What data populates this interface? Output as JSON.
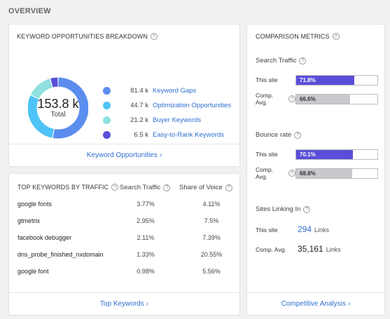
{
  "overview_title": "OVERVIEW",
  "keyword_opportunities": {
    "title": "KEYWORD OPPORTUNITIES BREAKDOWN",
    "total_value": "153.8 k",
    "total_label": "Total",
    "segments": [
      {
        "value": "81.4 k",
        "amount": 81.4,
        "label": "Keyword Gaps",
        "color": "#5b8def"
      },
      {
        "value": "44.7 k",
        "amount": 44.7,
        "label": "Optimization Opportunities",
        "color": "#4fc3f7"
      },
      {
        "value": "21.2 k",
        "amount": 21.2,
        "label": "Buyer Keywords",
        "color": "#8fe0e0"
      },
      {
        "value": "6.5 k",
        "amount": 6.5,
        "label": "Easy-to-Rank Keywords",
        "color": "#5a4fd8"
      }
    ],
    "footer_link": "Keyword Opportunities"
  },
  "top_keywords": {
    "title": "TOP KEYWORDS BY TRAFFIC",
    "col_search_traffic": "Search Traffic",
    "col_share_of_voice": "Share of Voice",
    "rows": [
      {
        "keyword": "google fonts",
        "search_traffic": "3.77%",
        "share_of_voice": "4.11%"
      },
      {
        "keyword": "gtmetrix",
        "search_traffic": "2.95%",
        "share_of_voice": "7.5%"
      },
      {
        "keyword": "facebook debugger",
        "search_traffic": "2.11%",
        "share_of_voice": "7.39%"
      },
      {
        "keyword": "dns_probe_finished_nxdomain",
        "search_traffic": "1.33%",
        "share_of_voice": "20.55%"
      },
      {
        "keyword": "google font",
        "search_traffic": "0.98%",
        "share_of_voice": "5.56%"
      }
    ],
    "footer_link": "Top Keywords"
  },
  "comparison_metrics": {
    "title": "COMPARISON METRICS",
    "search_traffic": {
      "title": "Search Traffic",
      "site_label": "This site",
      "site_value": "71.8%",
      "site_fraction": 0.718,
      "avg_label": "Comp. Avg.",
      "avg_value": "66.6%",
      "avg_fraction": 0.666
    },
    "bounce_rate": {
      "title": "Bounce rate",
      "site_label": "This site",
      "site_value": "70.1%",
      "site_fraction": 0.701,
      "avg_label": "Comp. Avg.",
      "avg_value": "68.8%",
      "avg_fraction": 0.688
    },
    "sites_linking_in": {
      "title": "Sites Linking In",
      "site_label": "This site",
      "site_value": "294",
      "avg_label": "Comp. Avg.",
      "avg_value": "35,161",
      "unit": "Links"
    },
    "footer_link": "Competitive Analysis"
  },
  "icons": {
    "help": "help-circle-icon",
    "chevron": "chevron-right-icon"
  }
}
